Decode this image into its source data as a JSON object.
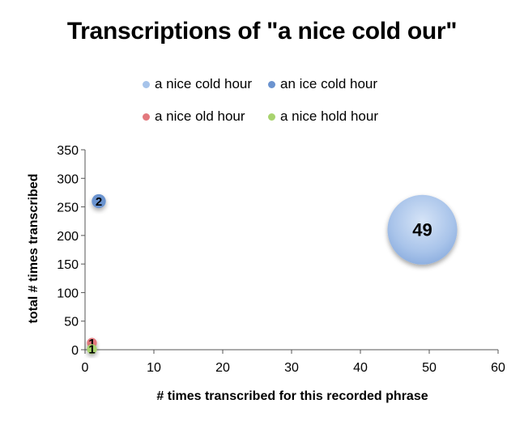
{
  "chart_data": {
    "type": "bubble",
    "title": "Transcriptions of \"a nice cold our\"",
    "xlabel": "# times transcribed for this recorded phrase",
    "ylabel": "total # times transcribed",
    "xlim": [
      0,
      60
    ],
    "ylim": [
      0,
      350
    ],
    "xticks": [
      0,
      10,
      20,
      30,
      40,
      50,
      60
    ],
    "yticks": [
      0,
      50,
      100,
      150,
      200,
      250,
      300,
      350
    ],
    "legend_position": "top",
    "series": [
      {
        "name": "a nice cold hour",
        "color": "#a6c3ea",
        "points": [
          {
            "x": 49,
            "y": 210,
            "size": 49,
            "label": "49"
          }
        ]
      },
      {
        "name": "an ice cold hour",
        "color": "#6b93cf",
        "points": [
          {
            "x": 2,
            "y": 260,
            "size": 2,
            "label": "2"
          }
        ]
      },
      {
        "name": "a nice old hour",
        "color": "#e3787d",
        "points": [
          {
            "x": 1,
            "y": 12,
            "size": 1,
            "label": "1"
          }
        ]
      },
      {
        "name": "a nice hold hour",
        "color": "#a8d36e",
        "points": [
          {
            "x": 1,
            "y": 1,
            "size": 1,
            "label": "1"
          }
        ]
      }
    ]
  }
}
